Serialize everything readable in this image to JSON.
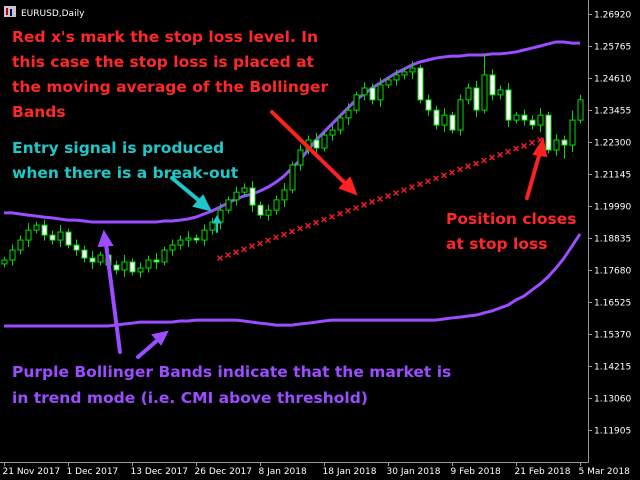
{
  "chart_data": {
    "type": "candlestick",
    "title": "EURUSD,Daily",
    "categories": [
      "21 Nov 2017",
      null,
      null,
      null,
      null,
      null,
      null,
      null,
      "1 Dec 2017",
      null,
      null,
      null,
      null,
      null,
      null,
      null,
      "13 Dec 2017",
      null,
      null,
      null,
      null,
      null,
      null,
      null,
      "26 Dec 2017",
      null,
      null,
      null,
      null,
      null,
      null,
      null,
      "8 Jan 2018",
      null,
      null,
      null,
      null,
      null,
      null,
      null,
      "18 Jan 2018",
      null,
      null,
      null,
      null,
      null,
      null,
      null,
      "30 Jan 2018",
      null,
      null,
      null,
      null,
      null,
      null,
      null,
      "9 Feb 2018",
      null,
      null,
      null,
      null,
      null,
      null,
      null,
      "21 Feb 2018",
      null,
      null,
      null,
      null,
      null,
      null,
      null,
      "5 Mar 2018"
    ],
    "open": [
      1.179,
      1.1804,
      1.184,
      1.1876,
      1.1912,
      1.193,
      1.1894,
      1.1876,
      1.1905,
      1.1858,
      1.184,
      1.1811,
      1.1797,
      1.1822,
      1.1786,
      1.1768,
      1.1797,
      1.1761,
      1.1775,
      1.1804,
      1.1797,
      1.184,
      1.1858,
      1.1876,
      1.1883,
      1.1876,
      1.1912,
      1.1941,
      1.1984,
      1.2021,
      1.2049,
      1.2064,
      1.2002,
      1.1966,
      1.1984,
      1.2021,
      1.2057,
      1.2147,
      1.2201,
      1.2237,
      1.2208,
      1.2255,
      1.2273,
      1.2317,
      1.2345,
      1.24,
      1.2425,
      1.2382,
      1.2436,
      1.2454,
      1.2472,
      1.2483,
      1.2497,
      1.2382,
      1.2345,
      1.2291,
      1.2327,
      1.2273,
      1.2382,
      1.2425,
      1.2345,
      1.2472,
      1.24,
      1.2418,
      1.2309,
      1.2327,
      1.2309,
      1.2291,
      1.2327,
      1.2201,
      1.2237,
      1.2219,
      1.2309
    ],
    "high": [
      1.1816,
      1.186,
      1.1892,
      1.1937,
      1.1942,
      1.195,
      1.191,
      1.193,
      1.1917,
      1.1878,
      1.1856,
      1.1836,
      1.1834,
      1.1842,
      1.1802,
      1.1822,
      1.1809,
      1.1795,
      1.182,
      1.1829,
      1.1852,
      1.1878,
      1.1892,
      1.1908,
      1.1895,
      1.1932,
      1.1957,
      1.2009,
      1.2033,
      1.2069,
      1.208,
      1.2089,
      1.2014,
      1.2004,
      1.2037,
      1.2082,
      1.2159,
      1.2221,
      1.2253,
      1.2262,
      1.2267,
      1.2293,
      1.2333,
      1.237,
      1.2412,
      1.2445,
      1.2441,
      1.2461,
      1.2466,
      1.2492,
      1.2499,
      1.2522,
      1.2509,
      1.2402,
      1.2361,
      1.2352,
      1.2339,
      1.2402,
      1.2441,
      1.245,
      1.255,
      1.2492,
      1.2434,
      1.2443,
      1.2339,
      1.2347,
      1.2325,
      1.2352,
      1.2339,
      1.2257,
      1.2253,
      1.2344,
      1.24
    ],
    "low": [
      1.1778,
      1.1784,
      1.1824,
      1.1851,
      1.19,
      1.1874,
      1.186,
      1.1851,
      1.1846,
      1.182,
      1.1795,
      1.1772,
      1.1785,
      1.1766,
      1.1752,
      1.1743,
      1.1749,
      1.1741,
      1.1759,
      1.1772,
      1.1785,
      1.182,
      1.1842,
      1.1851,
      1.1864,
      1.1856,
      1.1896,
      1.1916,
      1.1972,
      1.2001,
      1.2033,
      1.1977,
      1.1954,
      1.1946,
      1.1968,
      1.1996,
      1.2045,
      1.2127,
      1.2185,
      1.2183,
      1.2196,
      1.2235,
      1.2257,
      1.2292,
      1.2333,
      1.238,
      1.2366,
      1.2357,
      1.2424,
      1.2434,
      1.2456,
      1.2458,
      1.237,
      1.2325,
      1.2275,
      1.2266,
      1.2261,
      1.2253,
      1.2366,
      1.232,
      1.2333,
      1.238,
      1.2384,
      1.2284,
      1.2297,
      1.2289,
      1.2275,
      1.2266,
      1.2189,
      1.2181,
      1.217,
      1.2194,
      1.2297
    ],
    "close": [
      1.1804,
      1.184,
      1.1876,
      1.1912,
      1.193,
      1.1894,
      1.1876,
      1.1905,
      1.1858,
      1.184,
      1.1811,
      1.1797,
      1.1822,
      1.1786,
      1.1768,
      1.1797,
      1.1761,
      1.1775,
      1.1804,
      1.1797,
      1.184,
      1.1858,
      1.1876,
      1.1883,
      1.1876,
      1.1912,
      1.1941,
      1.1984,
      1.2021,
      1.2049,
      1.2064,
      1.2002,
      1.1966,
      1.1984,
      1.2021,
      1.2057,
      1.2147,
      1.2201,
      1.2237,
      1.2208,
      1.2255,
      1.2273,
      1.2317,
      1.2345,
      1.24,
      1.2425,
      1.2382,
      1.2436,
      1.2454,
      1.2472,
      1.2483,
      1.2497,
      1.2382,
      1.2345,
      1.2291,
      1.2327,
      1.2273,
      1.2382,
      1.2425,
      1.2345,
      1.2472,
      1.24,
      1.2418,
      1.2309,
      1.2327,
      1.2309,
      1.2291,
      1.2327,
      1.2201,
      1.2237,
      1.2219,
      1.2309,
      1.2382
    ],
    "candle_color": "#00e000",
    "up_color": "#000000",
    "down_color": "#ffffff",
    "bands": [
      {
        "color": "#9b4dff",
        "values": [
          1.1974,
          1.1974,
          1.197,
          1.1966,
          1.1963,
          1.1959,
          1.1956,
          1.1952,
          1.1948,
          1.1948,
          1.1945,
          1.1941,
          1.1941,
          1.1941,
          1.1941,
          1.1941,
          1.1941,
          1.1941,
          1.1941,
          1.1941,
          1.1945,
          1.1945,
          1.1948,
          1.1952,
          1.1959,
          1.197,
          1.1981,
          1.1995,
          1.201,
          1.2024,
          1.2035,
          1.2042,
          1.2053,
          1.2067,
          1.2085,
          1.2107,
          1.2136,
          1.2165,
          1.2201,
          1.2237,
          1.2266,
          1.2295,
          1.2324,
          1.2353,
          1.2382,
          1.2403,
          1.2425,
          1.2443,
          1.2461,
          1.2479,
          1.2493,
          1.2508,
          1.2519,
          1.2526,
          1.2533,
          1.2537,
          1.254,
          1.254,
          1.2544,
          1.2544,
          1.2544,
          1.2548,
          1.2548,
          1.2551,
          1.2555,
          1.2562,
          1.2569,
          1.2576,
          1.2584,
          1.2591,
          1.2591,
          1.2587,
          1.2587
        ]
      },
      {
        "color": "#9b4dff",
        "values": [
          1.1566,
          1.1566,
          1.1566,
          1.1566,
          1.1566,
          1.1566,
          1.1566,
          1.1566,
          1.1566,
          1.1566,
          1.1566,
          1.1566,
          1.1566,
          1.1566,
          1.1569,
          1.1573,
          1.1576,
          1.158,
          1.158,
          1.158,
          1.158,
          1.158,
          1.1584,
          1.1584,
          1.1587,
          1.1587,
          1.1587,
          1.1587,
          1.1587,
          1.1587,
          1.1584,
          1.158,
          1.1576,
          1.1573,
          1.1569,
          1.1569,
          1.1569,
          1.1573,
          1.1576,
          1.158,
          1.1584,
          1.1587,
          1.1587,
          1.1587,
          1.1587,
          1.1587,
          1.1587,
          1.1587,
          1.1587,
          1.1587,
          1.1587,
          1.1587,
          1.1587,
          1.1587,
          1.1587,
          1.1591,
          1.1595,
          1.1598,
          1.1602,
          1.1605,
          1.1613,
          1.162,
          1.1631,
          1.1641,
          1.166,
          1.1674,
          1.1696,
          1.1717,
          1.1743,
          1.1775,
          1.1811,
          1.1854,
          1.1898
        ]
      }
    ],
    "stops": {
      "color": "#ff2020",
      "values": [
        null,
        null,
        null,
        null,
        null,
        null,
        null,
        null,
        null,
        null,
        null,
        null,
        null,
        null,
        null,
        null,
        null,
        null,
        null,
        null,
        null,
        null,
        null,
        null,
        null,
        null,
        null,
        1.1811,
        1.1822,
        1.1832,
        1.1843,
        1.1854,
        1.1864,
        1.1875,
        1.1886,
        1.1896,
        1.1907,
        1.1918,
        1.1928,
        1.1939,
        1.195,
        1.196,
        1.1971,
        1.1982,
        1.1992,
        1.2003,
        1.2014,
        1.2024,
        1.2035,
        1.2046,
        1.2056,
        1.2067,
        1.2078,
        1.2088,
        1.2099,
        1.211,
        1.212,
        1.2131,
        1.2142,
        1.2152,
        1.2163,
        1.2174,
        1.2184,
        1.2195,
        1.2206,
        1.2216,
        1.2227,
        1.2237,
        null,
        null,
        null,
        null,
        null
      ]
    },
    "ylim": [
      1.1075,
      1.27425
    ],
    "yticks": [
      {
        "value": 1.2692,
        "label": "1.26920"
      },
      1.25765,
      {
        "value": 1.2461,
        "label": "1.24610"
      },
      1.23455,
      {
        "value": 1.223,
        "label": "1.22300"
      },
      1.21145,
      {
        "value": 1.1999,
        "label": "1.19990"
      },
      1.18835,
      {
        "value": 1.1768,
        "label": "1.17680"
      },
      1.16525,
      {
        "value": 1.1537,
        "label": "1.15370"
      },
      1.14215,
      {
        "value": 1.1306,
        "label": "1.13060"
      },
      1.11905
    ],
    "annotations": [
      {
        "color": "#ff2828",
        "lines": [
          "Red x's mark the stop loss level. In",
          "this case the stop loss is placed at",
          "the moving average of the Bollinger",
          "Bands"
        ]
      },
      {
        "color": "#1fc8c8",
        "lines": [
          "Entry signal is produced",
          "when there is a break-out"
        ]
      },
      {
        "color": "#ff2828",
        "lines": [
          "Position closes",
          "at stop loss"
        ]
      },
      {
        "color": "#9b4dff",
        "lines": [
          "Purple Bollinger Bands indicate that the market is",
          "in trend mode (i.e. CMI above threshold)"
        ]
      }
    ]
  }
}
